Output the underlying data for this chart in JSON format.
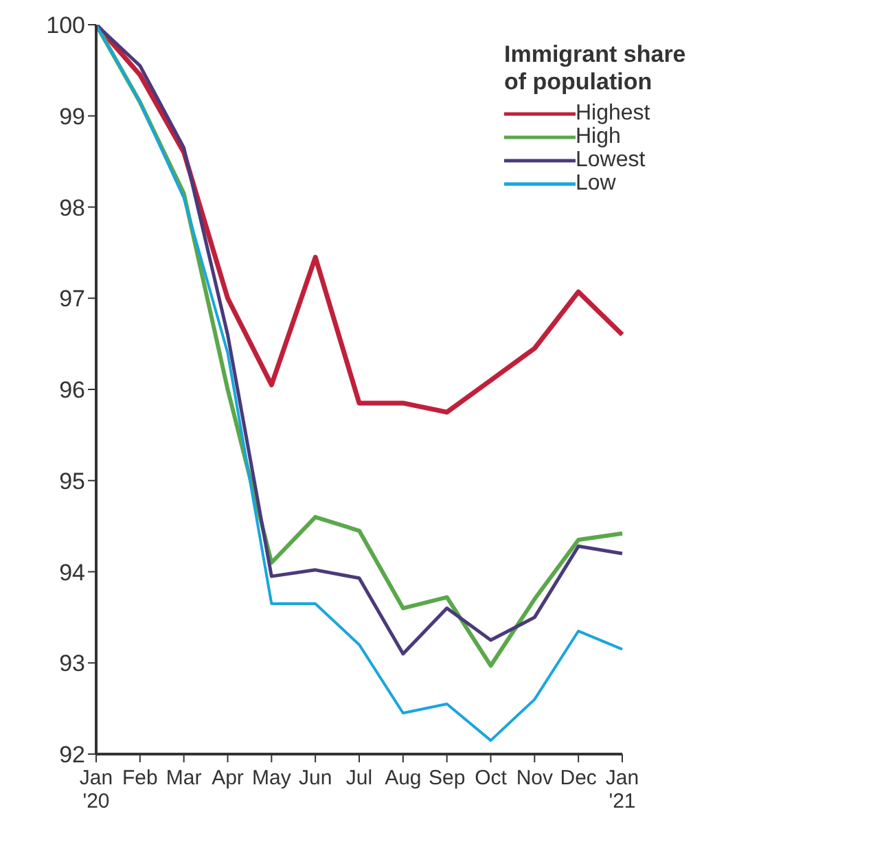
{
  "chart_data": {
    "type": "line",
    "legend_title": "Immigrant share\nof population",
    "categories": [
      "Jan\n'20",
      "Feb",
      "Mar",
      "Apr",
      "May",
      "Jun",
      "Jul",
      "Aug",
      "Sep",
      "Oct",
      "Nov",
      "Dec",
      "Jan\n'21"
    ],
    "series": [
      {
        "name": "Highest",
        "color": "#c0203a",
        "values": [
          100,
          99.45,
          98.6,
          97.0,
          96.05,
          97.45,
          95.85,
          95.85,
          95.75,
          96.1,
          96.45,
          97.07,
          96.6
        ]
      },
      {
        "name": "High",
        "color": "#5aa84a",
        "values": [
          100,
          99.15,
          98.15,
          96.0,
          94.1,
          94.6,
          94.45,
          93.6,
          93.72,
          92.97,
          93.7,
          94.35,
          94.42
        ]
      },
      {
        "name": "Lowest",
        "color": "#4b3a7a",
        "values": [
          100,
          99.55,
          98.65,
          96.6,
          93.95,
          94.02,
          93.93,
          93.1,
          93.6,
          93.25,
          93.5,
          94.28,
          94.2
        ]
      },
      {
        "name": "Low",
        "color": "#1aa6dc",
        "values": [
          100,
          99.15,
          98.1,
          96.4,
          93.65,
          93.65,
          93.2,
          92.45,
          92.55,
          92.15,
          92.6,
          93.35,
          93.15
        ]
      }
    ],
    "ylim": [
      92,
      100
    ],
    "yticks": [
      92,
      93,
      94,
      95,
      96,
      97,
      98,
      99,
      100
    ],
    "grid": false,
    "legend": "top right",
    "marker": "none",
    "line_style": "solid"
  }
}
